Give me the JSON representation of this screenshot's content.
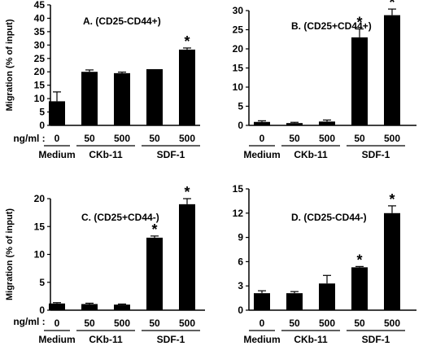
{
  "chart_data": [
    {
      "type": "bar",
      "panel": "A",
      "title": "A. (CD25-CD44+)",
      "ylabel": "Migration (% of input)",
      "ylim": [
        0,
        45
      ],
      "yticks": [
        0,
        5,
        10,
        15,
        20,
        25,
        30,
        35,
        40,
        45
      ],
      "dose_label": "ng/ml :",
      "categories": [
        "0",
        "50",
        "500",
        "50",
        "500"
      ],
      "groups": [
        {
          "name": "Medium",
          "span": [
            0,
            0
          ]
        },
        {
          "name": "CKb-11",
          "span": [
            1,
            2
          ]
        },
        {
          "name": "SDF-1",
          "span": [
            3,
            4
          ]
        }
      ],
      "values": [
        9,
        20,
        19.5,
        21,
        28.3
      ],
      "errors": [
        3.5,
        0.7,
        0.4,
        0,
        0.6
      ],
      "significant": [
        false,
        false,
        false,
        false,
        true
      ],
      "significance_marker": "*"
    },
    {
      "type": "bar",
      "panel": "B",
      "title": "B. (CD25+CD44+)",
      "ylabel": "",
      "ylim": [
        0,
        30
      ],
      "yticks": [
        0,
        5,
        10,
        15,
        20,
        25,
        30
      ],
      "dose_label": "",
      "categories": [
        "0",
        "50",
        "500",
        "50",
        "500"
      ],
      "groups": [
        {
          "name": "Medium",
          "span": [
            0,
            0
          ]
        },
        {
          "name": "CKb-11",
          "span": [
            1,
            2
          ]
        },
        {
          "name": "SDF-1",
          "span": [
            3,
            4
          ]
        }
      ],
      "values": [
        0.9,
        0.6,
        1.0,
        23,
        28.8
      ],
      "errors": [
        0.3,
        0.2,
        0.4,
        2.2,
        1.6
      ],
      "significant": [
        false,
        false,
        false,
        true,
        true
      ],
      "significance_marker": "*"
    },
    {
      "type": "bar",
      "panel": "C",
      "title": "C. (CD25+CD44-)",
      "ylabel": "Migration (% of input)",
      "ylim": [
        0,
        20
      ],
      "yticks": [
        0,
        5,
        10,
        15,
        20
      ],
      "dose_label": "ng/ml :",
      "categories": [
        "0",
        "50",
        "500",
        "50",
        "500"
      ],
      "groups": [
        {
          "name": "Medium",
          "span": [
            0,
            0
          ]
        },
        {
          "name": "CKb-11",
          "span": [
            1,
            2
          ]
        },
        {
          "name": "SDF-1",
          "span": [
            3,
            4
          ]
        }
      ],
      "values": [
        1.2,
        1.1,
        1.0,
        13,
        19
      ],
      "errors": [
        0.15,
        0.15,
        0.1,
        0.3,
        1.0
      ],
      "significant": [
        false,
        false,
        false,
        true,
        true
      ],
      "significance_marker": "*"
    },
    {
      "type": "bar",
      "panel": "D",
      "title": "D. (CD25-CD44-)",
      "ylabel": "",
      "ylim": [
        0,
        15
      ],
      "yticks": [
        0,
        3,
        6,
        9,
        12,
        15
      ],
      "dose_label": "",
      "categories": [
        "0",
        "50",
        "500",
        "50",
        "500"
      ],
      "groups": [
        {
          "name": "Medium",
          "span": [
            0,
            0
          ]
        },
        {
          "name": "CKb-11",
          "span": [
            1,
            2
          ]
        },
        {
          "name": "SDF-1",
          "span": [
            3,
            4
          ]
        }
      ],
      "values": [
        2.1,
        2.1,
        3.3,
        5.3,
        12
      ],
      "errors": [
        0.3,
        0.2,
        1.0,
        0.1,
        0.9
      ],
      "significant": [
        false,
        false,
        false,
        true,
        true
      ],
      "significance_marker": "*"
    }
  ]
}
